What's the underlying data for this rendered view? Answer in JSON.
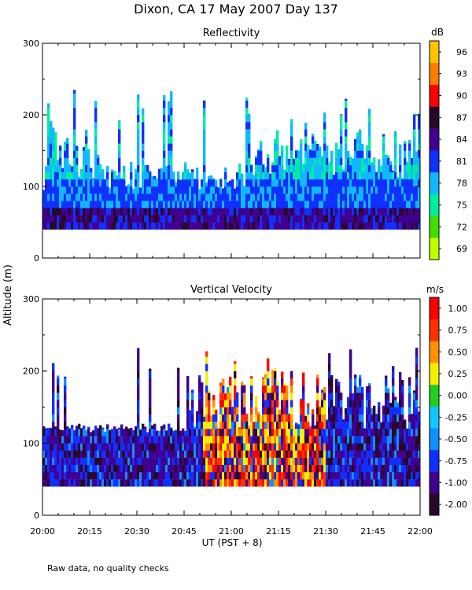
{
  "header": {
    "title": "Dixon, CA 17 May 2007  Day 137",
    "footnote": "Raw data, no quality checks"
  },
  "chart_data": [
    {
      "type": "heatmap",
      "title": "Reflectivity",
      "ylabel": "Altitude (m)",
      "xlabel": "UT  (PST + 8)",
      "ylim": [
        0,
        300
      ],
      "yticks": [
        0,
        100,
        200,
        300
      ],
      "xticks": [
        "20:00",
        "20:15",
        "20:30",
        "20:45",
        "21:00",
        "21:15",
        "21:30",
        "21:45",
        "22:00"
      ],
      "colorbar": {
        "unit": "dB",
        "labels": [
          "69",
          "72",
          "75",
          "78",
          "81",
          "84",
          "87",
          "90",
          "93",
          "96"
        ],
        "colors": [
          "#bfff00",
          "#3fdf00",
          "#00eea0",
          "#10b8ff",
          "#1030ff",
          "#400090",
          "#2a0828",
          "#ff0000",
          "#ff7a00",
          "#ffc400"
        ]
      }
    },
    {
      "type": "heatmap",
      "title": "Vertical Velocity",
      "ylabel": "Altitude (m)",
      "xlabel": "UT  (PST + 8)",
      "ylim": [
        0,
        300
      ],
      "yticks": [
        0,
        100,
        200,
        300
      ],
      "xticks": [
        "20:00",
        "20:15",
        "20:30",
        "20:45",
        "21:00",
        "21:15",
        "21:30",
        "21:45",
        "22:00"
      ],
      "colorbar": {
        "unit": "m/s",
        "labels": [
          "-2.00",
          "-1.00",
          "-0.75",
          "-0.50",
          "-0.25",
          "0.00",
          "0.25",
          "0.50",
          "0.75",
          "1.00"
        ],
        "colors": [
          "#2a0828",
          "#400090",
          "#1030ff",
          "#1090ff",
          "#10c8ff",
          "#20d020",
          "#f0f000",
          "#ff9000",
          "#ff3000",
          "#ff0000"
        ]
      }
    }
  ]
}
